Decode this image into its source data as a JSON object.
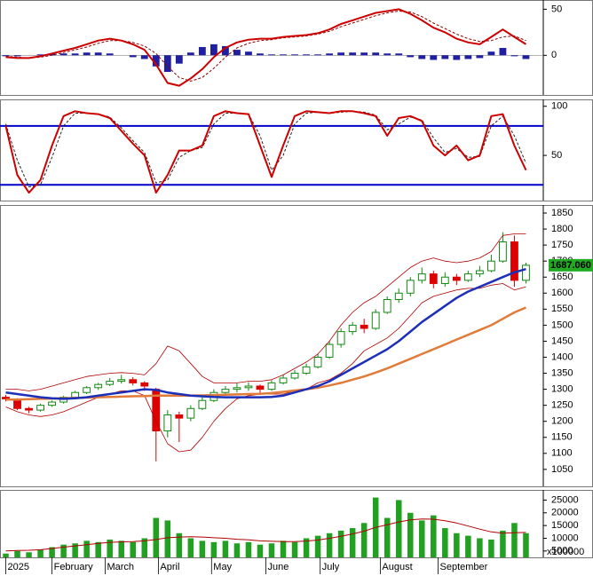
{
  "chart_data": [
    {
      "type": "line",
      "x": [
        0,
        1,
        2,
        3,
        4,
        5,
        6,
        7,
        8,
        9,
        10,
        11,
        12,
        13,
        14,
        15,
        16,
        17,
        18,
        19,
        20,
        21,
        22,
        23,
        24,
        25,
        26,
        27,
        28,
        29,
        30,
        31,
        32,
        33,
        34,
        35,
        36,
        37,
        38,
        39,
        40,
        41,
        42,
        43,
        44,
        45
      ],
      "xlim": [
        -0.5,
        46.5
      ],
      "ylim": [
        -43,
        60
      ],
      "yticks": [
        0,
        50
      ],
      "series": [
        {
          "color": "#1f1fa0",
          "kind": "bar",
          "values": [
            -1,
            -1,
            0,
            1,
            2,
            2,
            2,
            3,
            3,
            2,
            0,
            -2,
            -4,
            -12,
            -18,
            -9,
            3,
            9,
            12,
            10,
            6,
            4,
            2,
            1,
            1,
            1,
            1,
            1,
            2,
            3,
            3,
            3,
            3,
            2,
            2,
            -2,
            -4,
            -5,
            -4,
            -5,
            -4,
            -3,
            4,
            8,
            -1,
            -4
          ]
        },
        {
          "color": "#8b0000",
          "dash": true,
          "values": [
            -1,
            -2,
            -3,
            -2,
            0,
            3,
            6,
            9,
            13,
            16,
            16,
            14,
            10,
            2,
            -12,
            -24,
            -28,
            -24,
            -14,
            -2,
            8,
            13,
            16,
            17,
            19,
            20,
            21,
            23,
            26,
            31,
            35,
            39,
            43,
            46,
            48,
            47,
            42,
            35,
            29,
            23,
            18,
            15,
            16,
            20,
            21,
            16
          ]
        },
        {
          "color": "#cc0000",
          "values": [
            -2,
            -3,
            -3,
            -1,
            2,
            5,
            8,
            12,
            16,
            18,
            16,
            12,
            6,
            -10,
            -30,
            -33,
            -25,
            -15,
            -2,
            8,
            14,
            17,
            18,
            18,
            20,
            21,
            22,
            24,
            28,
            34,
            38,
            42,
            46,
            48,
            50,
            45,
            38,
            30,
            25,
            18,
            14,
            12,
            20,
            28,
            20,
            12
          ]
        }
      ]
    },
    {
      "type": "line",
      "x": [
        0,
        1,
        2,
        3,
        4,
        5,
        6,
        7,
        8,
        9,
        10,
        11,
        12,
        13,
        14,
        15,
        16,
        17,
        18,
        19,
        20,
        21,
        22,
        23,
        24,
        25,
        26,
        27,
        28,
        29,
        30,
        31,
        32,
        33,
        34,
        35,
        36,
        37,
        38,
        39,
        40,
        41,
        42,
        43,
        44,
        45
      ],
      "xlim": [
        -0.5,
        46.5
      ],
      "ylim": [
        4,
        107
      ],
      "yticks": [
        50,
        100
      ],
      "hlines": [
        80,
        20
      ],
      "hline_color": "#0000cc",
      "series": [
        {
          "color": "#222222",
          "dash": true,
          "values": [
            82,
            45,
            18,
            20,
            48,
            80,
            93,
            93,
            92,
            89,
            78,
            65,
            53,
            22,
            25,
            48,
            55,
            58,
            82,
            93,
            93,
            92,
            70,
            35,
            50,
            82,
            93,
            94,
            93,
            94,
            95,
            94,
            91,
            76,
            82,
            89,
            86,
            68,
            53,
            57,
            48,
            49,
            80,
            90,
            70,
            42
          ]
        },
        {
          "color": "#cc0000",
          "values": [
            80,
            30,
            12,
            25,
            60,
            90,
            95,
            93,
            92,
            88,
            75,
            62,
            50,
            12,
            30,
            55,
            55,
            60,
            90,
            95,
            93,
            92,
            60,
            28,
            60,
            90,
            95,
            94,
            93,
            95,
            95,
            93,
            90,
            70,
            88,
            90,
            85,
            60,
            50,
            60,
            45,
            50,
            90,
            92,
            60,
            35
          ]
        }
      ]
    },
    {
      "type": "candlestick",
      "x": [
        0,
        1,
        2,
        3,
        4,
        5,
        6,
        7,
        8,
        9,
        10,
        11,
        12,
        13,
        14,
        15,
        16,
        17,
        18,
        19,
        20,
        21,
        22,
        23,
        24,
        25,
        26,
        27,
        28,
        29,
        30,
        31,
        32,
        33,
        34,
        35,
        36,
        37,
        38,
        39,
        40,
        41,
        42,
        43,
        44,
        45
      ],
      "xlim": [
        -0.5,
        46.5
      ],
      "ylim": [
        997,
        1875
      ],
      "yticks": [
        1050,
        1100,
        1150,
        1200,
        1250,
        1300,
        1350,
        1400,
        1450,
        1500,
        1550,
        1600,
        1650,
        1700,
        1750,
        1800,
        1850
      ],
      "up_color": "#118811",
      "down_color": "#dd0000",
      "open": [
        1275,
        1270,
        1240,
        1235,
        1250,
        1260,
        1275,
        1290,
        1305,
        1315,
        1325,
        1330,
        1320,
        1300,
        1170,
        1220,
        1210,
        1240,
        1265,
        1290,
        1300,
        1305,
        1310,
        1300,
        1320,
        1335,
        1350,
        1370,
        1400,
        1440,
        1480,
        1500,
        1490,
        1540,
        1580,
        1600,
        1640,
        1660,
        1630,
        1650,
        1640,
        1660,
        1670,
        1700,
        1760,
        1640
      ],
      "high": [
        1282,
        1272,
        1245,
        1255,
        1265,
        1280,
        1295,
        1310,
        1320,
        1335,
        1345,
        1338,
        1325,
        1305,
        1235,
        1230,
        1250,
        1275,
        1300,
        1310,
        1318,
        1322,
        1315,
        1328,
        1345,
        1360,
        1380,
        1410,
        1450,
        1490,
        1510,
        1520,
        1550,
        1590,
        1615,
        1650,
        1680,
        1670,
        1665,
        1660,
        1670,
        1685,
        1720,
        1790,
        1780,
        1695
      ],
      "low": [
        1262,
        1235,
        1225,
        1230,
        1245,
        1255,
        1270,
        1285,
        1298,
        1310,
        1318,
        1312,
        1295,
        1075,
        1150,
        1135,
        1200,
        1235,
        1260,
        1280,
        1290,
        1295,
        1285,
        1295,
        1315,
        1330,
        1345,
        1365,
        1395,
        1430,
        1470,
        1475,
        1485,
        1535,
        1570,
        1590,
        1630,
        1615,
        1620,
        1625,
        1635,
        1650,
        1665,
        1695,
        1620,
        1630
      ],
      "close": [
        1270,
        1240,
        1235,
        1250,
        1260,
        1275,
        1290,
        1305,
        1315,
        1325,
        1330,
        1320,
        1310,
        1170,
        1220,
        1210,
        1240,
        1265,
        1290,
        1300,
        1305,
        1310,
        1300,
        1320,
        1335,
        1350,
        1370,
        1400,
        1440,
        1480,
        1500,
        1490,
        1540,
        1580,
        1600,
        1640,
        1660,
        1630,
        1650,
        1640,
        1660,
        1670,
        1700,
        1760,
        1640,
        1687
      ],
      "series": [
        {
          "color": "#b00000",
          "width": 0.8,
          "values": [
            1300,
            1300,
            1295,
            1300,
            1310,
            1320,
            1330,
            1340,
            1345,
            1350,
            1352,
            1350,
            1345,
            1380,
            1435,
            1420,
            1380,
            1340,
            1320,
            1320,
            1320,
            1325,
            1325,
            1330,
            1345,
            1365,
            1385,
            1410,
            1450,
            1500,
            1540,
            1570,
            1590,
            1620,
            1650,
            1680,
            1700,
            1710,
            1700,
            1695,
            1700,
            1710,
            1730,
            1780,
            1785,
            1785
          ]
        },
        {
          "color": "#b00000",
          "width": 0.8,
          "values": [
            1245,
            1230,
            1220,
            1215,
            1220,
            1230,
            1245,
            1260,
            1275,
            1285,
            1295,
            1295,
            1280,
            1200,
            1130,
            1105,
            1110,
            1150,
            1200,
            1240,
            1270,
            1280,
            1285,
            1285,
            1285,
            1295,
            1300,
            1320,
            1330,
            1350,
            1380,
            1420,
            1440,
            1460,
            1490,
            1530,
            1570,
            1590,
            1600,
            1610,
            1615,
            1615,
            1625,
            1630,
            1610,
            1620
          ]
        },
        {
          "color": "#e07b39",
          "width": 2.5,
          "values": [
            1268,
            1268,
            1269,
            1270,
            1271,
            1272,
            1273,
            1274,
            1275,
            1276,
            1277,
            1278,
            1279,
            1280,
            1280,
            1280,
            1280,
            1281,
            1282,
            1283,
            1284,
            1285,
            1286,
            1288,
            1292,
            1296,
            1300,
            1305,
            1312,
            1320,
            1330,
            1340,
            1352,
            1365,
            1380,
            1395,
            1410,
            1425,
            1440,
            1455,
            1470,
            1485,
            1500,
            1520,
            1540,
            1555
          ]
        },
        {
          "color": "#1c2fb8",
          "width": 2.5,
          "values": [
            1290,
            1285,
            1280,
            1275,
            1272,
            1270,
            1272,
            1275,
            1280,
            1285,
            1290,
            1295,
            1300,
            1298,
            1290,
            1285,
            1280,
            1278,
            1276,
            1275,
            1275,
            1275,
            1275,
            1276,
            1280,
            1290,
            1300,
            1310,
            1325,
            1345,
            1365,
            1385,
            1405,
            1425,
            1450,
            1480,
            1510,
            1535,
            1560,
            1585,
            1605,
            1620,
            1635,
            1650,
            1665,
            1675
          ]
        }
      ],
      "annotations": [
        {
          "text": "1687.060",
          "value": 1687.06,
          "color": "#22aa22"
        }
      ]
    },
    {
      "type": "bar",
      "x": [
        0,
        1,
        2,
        3,
        4,
        5,
        6,
        7,
        8,
        9,
        10,
        11,
        12,
        13,
        14,
        15,
        16,
        17,
        18,
        19,
        20,
        21,
        22,
        23,
        24,
        25,
        26,
        27,
        28,
        29,
        30,
        31,
        32,
        33,
        34,
        35,
        36,
        37,
        38,
        39,
        40,
        41,
        42,
        43,
        44,
        45
      ],
      "xlim": [
        -0.5,
        46.5
      ],
      "ylim": [
        2500,
        29000
      ],
      "yticks": [
        5000,
        10000,
        15000,
        20000,
        25000
      ],
      "unit_label": "x100000",
      "xticks": [
        {
          "value": 0,
          "label": "2025"
        },
        {
          "value": 4,
          "label": "February"
        },
        {
          "value": 8.6,
          "label": "March"
        },
        {
          "value": 13.2,
          "label": "April"
        },
        {
          "value": 17.8,
          "label": "May"
        },
        {
          "value": 22.5,
          "label": "June"
        },
        {
          "value": 27.2,
          "label": "July"
        },
        {
          "value": 32.4,
          "label": "August"
        },
        {
          "value": 37.4,
          "label": "September"
        }
      ],
      "color": "#22a022",
      "values": [
        4000,
        5000,
        4500,
        5500,
        6500,
        7500,
        8000,
        9000,
        8500,
        9500,
        9000,
        8500,
        10000,
        18000,
        17000,
        12000,
        10000,
        9000,
        8500,
        9000,
        8000,
        8500,
        7500,
        8000,
        9000,
        8500,
        10000,
        11000,
        12000,
        13000,
        14000,
        16000,
        26000,
        18000,
        25000,
        20000,
        17000,
        19000,
        14000,
        12000,
        11000,
        10000,
        9500,
        13000,
        16000,
        12000
      ],
      "series": [
        {
          "color": "#b00000",
          "width": 1,
          "values": [
            5000,
            5200,
            5300,
            5500,
            6000,
            6500,
            7000,
            7500,
            8000,
            8400,
            8600,
            8700,
            9000,
            9500,
            10200,
            10500,
            10600,
            10500,
            10200,
            10000,
            9600,
            9400,
            9000,
            8800,
            8700,
            8700,
            8900,
            9300,
            10000,
            10800,
            11700,
            12800,
            14300,
            15300,
            16400,
            17200,
            17600,
            17500,
            16900,
            16000,
            14800,
            13600,
            12500,
            12000,
            12200,
            12300
          ]
        }
      ]
    }
  ]
}
